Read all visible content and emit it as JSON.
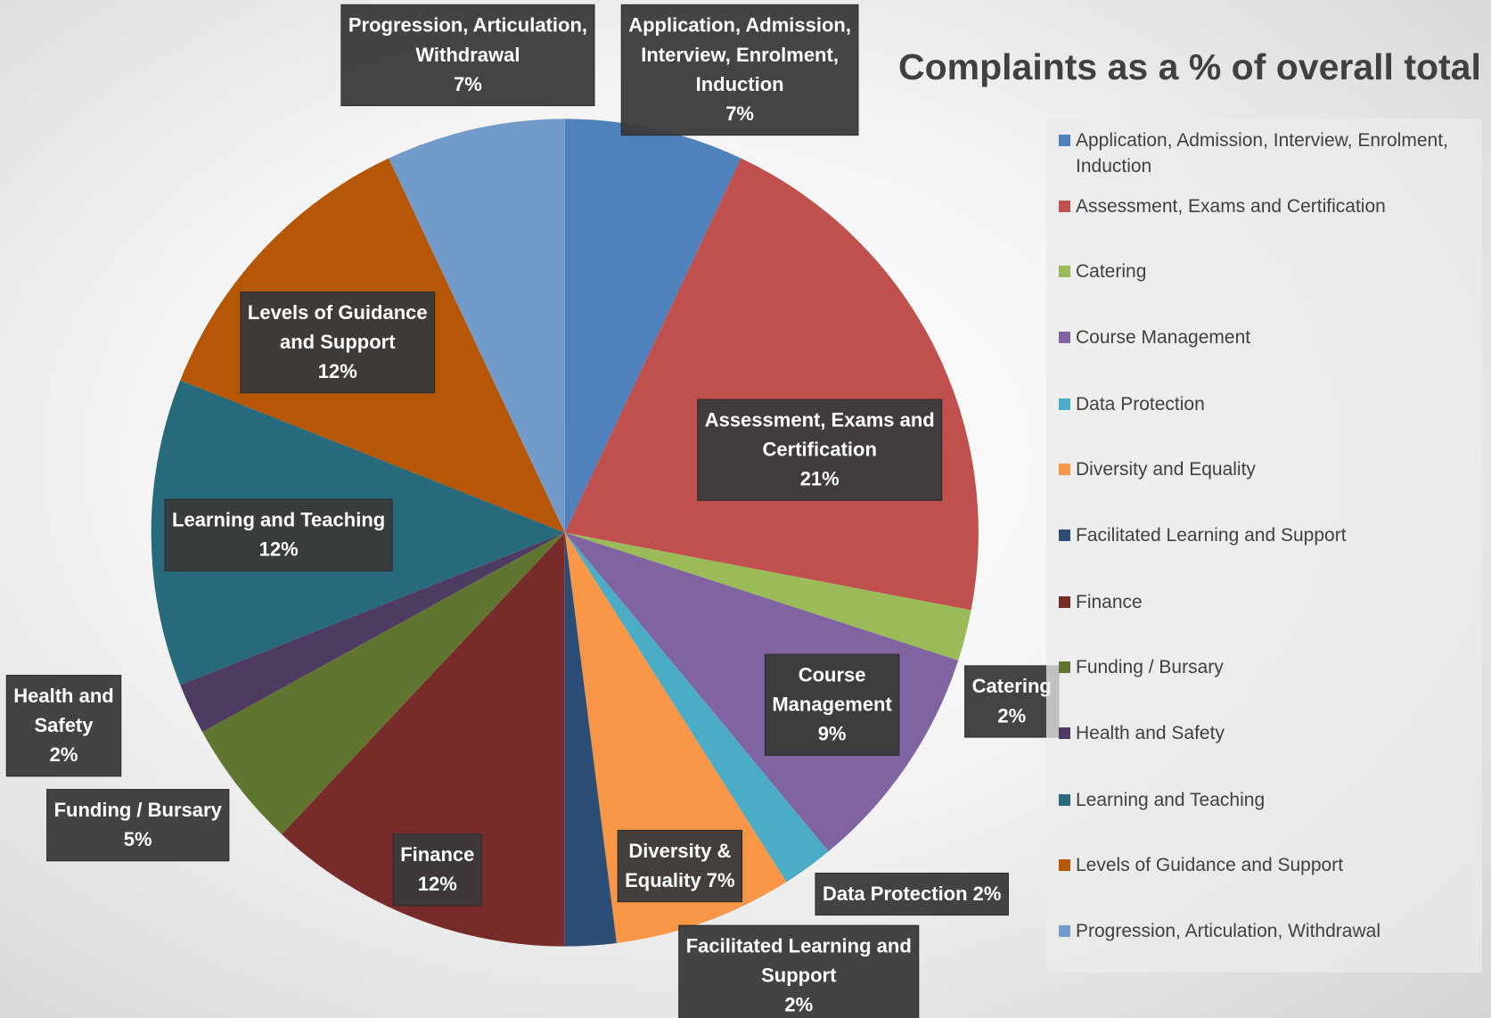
{
  "chart_data": {
    "type": "pie",
    "title": "Complaints as a % of overall total",
    "categories": [
      "Application, Admission, Interview, Enrolment, Induction",
      "Assessment, Exams and Certification",
      "Catering",
      "Course Management",
      "Data Protection",
      "Diversity and Equality",
      "Facilitated Learning and Support",
      "Finance",
      "Funding / Bursary",
      "Health and Safety",
      "Learning and Teaching",
      "Levels of Guidance and Support",
      "Progression, Articulation, Withdrawal"
    ],
    "values": [
      7,
      21,
      2,
      9,
      2,
      7,
      2,
      12,
      5,
      2,
      12,
      12,
      7
    ],
    "value_labels": [
      [
        "Application, Admission,",
        "Interview, Enrolment,",
        "Induction",
        "7%"
      ],
      [
        "Assessment, Exams and",
        "Certification",
        "21%"
      ],
      [
        "Catering",
        "2%"
      ],
      [
        "Course",
        "Management",
        "9%"
      ],
      [
        "Data Protection 2%"
      ],
      [
        "Diversity &",
        "Equality 7%"
      ],
      [
        "Facilitated Learning and",
        "Support",
        "2%"
      ],
      [
        "Finance",
        "12%"
      ],
      [
        "Funding / Bursary",
        "5%"
      ],
      [
        "Health and",
        "Safety",
        "2%"
      ],
      [
        "Learning and Teaching",
        "12%"
      ],
      [
        "Levels of Guidance",
        "and Support",
        "12%"
      ],
      [
        "Progression, Articulation,",
        "Withdrawal",
        "7%"
      ]
    ],
    "colors": [
      "#4f81bd",
      "#c0504d",
      "#9bbb59",
      "#8064a2",
      "#4bacc6",
      "#f79646",
      "#2c4d75",
      "#772c2a",
      "#5f7530",
      "#4d3b62",
      "#276a7c",
      "#b65708",
      "#729aca"
    ],
    "legend": "right"
  }
}
